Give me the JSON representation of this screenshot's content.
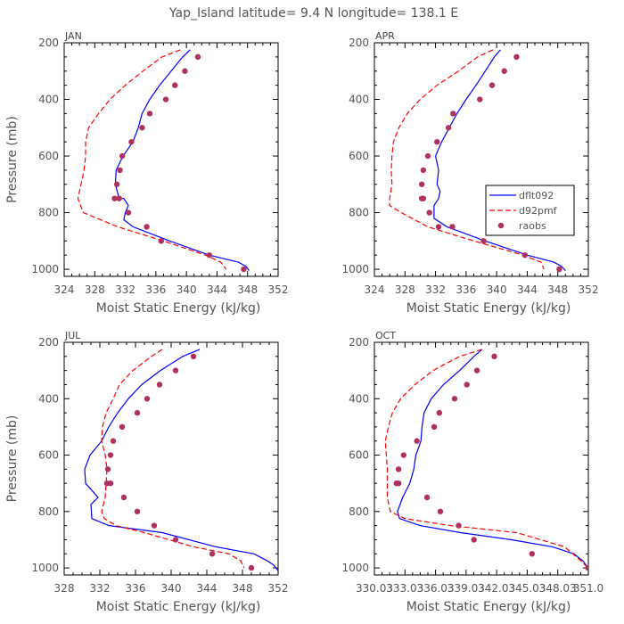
{
  "figure_title": "Yap_Island  latitude= 9.4 N longitude= 138.1 E",
  "chart_data": [
    {
      "type": "line",
      "title": "JAN",
      "xlabel": "Moist Static Energy (kJ/kg)",
      "ylabel": "Pressure (mb)",
      "xlim": [
        324,
        352
      ],
      "ylim": [
        1025,
        200
      ],
      "xticks": [
        324,
        328,
        332,
        336,
        340,
        344,
        348,
        352
      ],
      "xtick_labels": [
        "324",
        "328",
        "332",
        "336",
        "340",
        "344",
        "348",
        "352"
      ],
      "yticks": [
        200,
        400,
        600,
        800,
        1000
      ],
      "ytick_labels": [
        "200",
        "400",
        "600",
        "800",
        "1000"
      ],
      "series": [
        {
          "name": "dflt092",
          "color": "#0000ff",
          "style": "solid",
          "x": [
            340.5,
            339.5,
            338,
            336.5,
            335.2,
            334.2,
            333.7,
            333,
            331.7,
            330.8,
            330.7,
            331.2,
            331.8,
            332.4,
            332,
            331.8,
            333,
            337.8,
            343,
            346.8,
            347.8,
            348.2
          ],
          "y": [
            225,
            250,
            300,
            350,
            400,
            450,
            500,
            550,
            600,
            650,
            700,
            750,
            750,
            775,
            800,
            825,
            850,
            900,
            950,
            975,
            990,
            1005
          ]
        },
        {
          "name": "d92pmf",
          "color": "#ff0000",
          "style": "dashed",
          "x": [
            339.2,
            336.8,
            334.3,
            332,
            330,
            328.5,
            327.2,
            326.8,
            326.8,
            326.6,
            326.2,
            325.8,
            326.5,
            331,
            337,
            342.5,
            344.5,
            345.2
          ],
          "y": [
            225,
            250,
            300,
            350,
            400,
            450,
            500,
            550,
            600,
            650,
            700,
            750,
            800,
            850,
            900,
            950,
            975,
            1000
          ]
        },
        {
          "name": "raobs",
          "color": "#b03060",
          "style": "dots",
          "x": [
            341.5,
            339.8,
            338.5,
            337.3,
            335.2,
            334.2,
            332.8,
            331.6,
            331.3,
            330.9,
            330.6,
            331.2,
            332.4,
            334.8,
            336.7,
            343,
            347.5
          ],
          "y": [
            250,
            300,
            350,
            400,
            450,
            500,
            550,
            600,
            650,
            700,
            750,
            750,
            800,
            850,
            900,
            950,
            1000
          ]
        }
      ]
    },
    {
      "type": "line",
      "title": "APR",
      "xlabel": "Moist Static Energy (kJ/kg)",
      "ylabel": "",
      "xlim": [
        324,
        352
      ],
      "ylim": [
        1025,
        200
      ],
      "xticks": [
        324,
        328,
        332,
        336,
        340,
        344,
        348,
        352
      ],
      "xtick_labels": [
        "324",
        "328",
        "332",
        "336",
        "340",
        "344",
        "348",
        "352"
      ],
      "yticks": [
        200,
        400,
        600,
        800,
        1000
      ],
      "ytick_labels": [
        "200",
        "400",
        "600",
        "800",
        "1000"
      ],
      "legend": {
        "position": "center-right",
        "entries": [
          "dflt092",
          "d92pmf",
          "raobs"
        ]
      },
      "series": [
        {
          "name": "dflt092",
          "color": "#0000ff",
          "style": "solid",
          "x": [
            340.5,
            339.7,
            338.5,
            337.3,
            336,
            334.8,
            333.8,
            332.8,
            332,
            332.4,
            332.2,
            332.6,
            332.4,
            331.8,
            331.8,
            333.5,
            338.5,
            344,
            347.5,
            348.5,
            349
          ],
          "y": [
            225,
            250,
            300,
            350,
            400,
            450,
            500,
            550,
            600,
            650,
            700,
            725,
            750,
            775,
            820,
            850,
            900,
            950,
            975,
            990,
            1005
          ]
        },
        {
          "name": "d92pmf",
          "color": "#ff0000",
          "style": "dashed",
          "x": [
            339.5,
            337.5,
            335,
            332.2,
            330,
            328.3,
            327.2,
            326.5,
            326.3,
            326.2,
            326.3,
            326,
            326,
            327.5,
            331,
            337,
            343.5,
            345.8,
            346.2
          ],
          "y": [
            225,
            250,
            300,
            350,
            400,
            450,
            500,
            550,
            600,
            650,
            700,
            750,
            775,
            800,
            850,
            900,
            950,
            975,
            1000
          ]
        },
        {
          "name": "raobs",
          "color": "#b03060",
          "style": "dots",
          "x": [
            342.6,
            341,
            339.4,
            337.8,
            334.3,
            333.7,
            332.2,
            331,
            330.4,
            330.2,
            330.4,
            330.2,
            331.2,
            332.4,
            334.2,
            338.3,
            343.7,
            348.2
          ],
          "y": [
            250,
            300,
            350,
            400,
            450,
            500,
            550,
            600,
            650,
            700,
            750,
            750,
            800,
            850,
            850,
            900,
            950,
            1000
          ]
        }
      ]
    },
    {
      "type": "line",
      "title": "JUL",
      "xlabel": "Moist Static Energy (kJ/kg)",
      "ylabel": "Pressure (mb)",
      "xlim": [
        328,
        352
      ],
      "ylim": [
        1025,
        200
      ],
      "xticks": [
        328,
        332,
        336,
        340,
        344,
        348,
        352
      ],
      "xtick_labels": [
        "328",
        "332",
        "336",
        "340",
        "344",
        "348",
        "352"
      ],
      "yticks": [
        200,
        400,
        600,
        800,
        1000
      ],
      "ytick_labels": [
        "200",
        "400",
        "600",
        "800",
        "1000"
      ],
      "series": [
        {
          "name": "dflt092",
          "color": "#0000ff",
          "style": "solid",
          "x": [
            343.2,
            341.3,
            338.8,
            336.7,
            335.2,
            334,
            333,
            332.2,
            330.9,
            330.3,
            330.4,
            331.8,
            331,
            331.1,
            333,
            339,
            345,
            349.3,
            350.8,
            351.5,
            352
          ],
          "y": [
            225,
            250,
            300,
            350,
            400,
            450,
            500,
            550,
            600,
            650,
            700,
            750,
            775,
            825,
            850,
            875,
            925,
            950,
            975,
            990,
            1010
          ]
        },
        {
          "name": "d92pmf",
          "color": "#ff0000",
          "style": "dashed",
          "x": [
            339,
            337.8,
            335.7,
            334.2,
            333.5,
            332.7,
            332.3,
            332.2,
            332.6,
            332.8,
            332.7,
            332.6,
            332.2,
            332.5,
            333.8,
            337,
            342.5,
            346.5,
            347.8,
            348.2
          ],
          "y": [
            225,
            250,
            300,
            350,
            400,
            450,
            500,
            550,
            600,
            650,
            700,
            750,
            800,
            825,
            850,
            875,
            925,
            950,
            975,
            1000
          ]
        },
        {
          "name": "raobs",
          "color": "#b03060",
          "style": "dots",
          "x": [
            342.5,
            340.5,
            338.7,
            337.3,
            336.2,
            334.5,
            333.5,
            333.2,
            332.9,
            332.8,
            333.2,
            334.7,
            336.2,
            338.1,
            340.5,
            344.6,
            349
          ],
          "y": [
            250,
            300,
            350,
            400,
            450,
            500,
            550,
            600,
            650,
            700,
            700,
            750,
            800,
            850,
            900,
            950,
            1000
          ]
        }
      ]
    },
    {
      "type": "line",
      "title": "OCT",
      "xlabel": "Moist Static Energy (kJ/kg)",
      "ylabel": "",
      "xlim": [
        330.03,
        351.03
      ],
      "ylim": [
        1025,
        200
      ],
      "xticks": [
        330.03,
        333.03,
        336.03,
        339.03,
        342.03,
        345.03,
        348.03,
        351.03
      ],
      "xtick_labels": [
        "330.03",
        "333.03",
        "336.03",
        "339.03",
        "342.03",
        "345.03",
        "348.03",
        "351.0"
      ],
      "yticks": [
        200,
        400,
        600,
        800,
        1000
      ],
      "ytick_labels": [
        "200",
        "400",
        "600",
        "800",
        "1000"
      ],
      "series": [
        {
          "name": "dflt092",
          "color": "#0000ff",
          "style": "solid",
          "x": [
            340.6,
            339.8,
            338.4,
            336.8,
            335.6,
            334.9,
            334.7,
            334.6,
            334.1,
            333.9,
            333.5,
            332.8,
            332.3,
            332.5,
            334.5,
            338.5,
            343.5,
            347.5,
            349.6,
            350.5,
            351
          ],
          "y": [
            225,
            250,
            300,
            350,
            400,
            450,
            500,
            550,
            600,
            650,
            700,
            750,
            800,
            825,
            850,
            875,
            900,
            925,
            950,
            975,
            1000
          ]
        },
        {
          "name": "d92pmf",
          "color": "#ff0000",
          "style": "dashed",
          "x": [
            340.6,
            338.4,
            335.8,
            334,
            332.6,
            331.8,
            331.4,
            331.1,
            331.2,
            331.3,
            331.3,
            331.3,
            331.6,
            333,
            337.5,
            344,
            348.7,
            350.3,
            351
          ],
          "y": [
            225,
            250,
            300,
            350,
            400,
            450,
            500,
            550,
            600,
            650,
            700,
            750,
            800,
            825,
            850,
            875,
            925,
            975,
            1000
          ]
        },
        {
          "name": "raobs",
          "color": "#b03060",
          "style": "dots",
          "x": [
            341.8,
            340.1,
            339.1,
            337.9,
            336.4,
            335.9,
            334.2,
            332.9,
            332.4,
            332.2,
            332.4,
            335.2,
            336.5,
            338.3,
            339.8,
            345.5,
            351
          ],
          "y": [
            250,
            300,
            350,
            400,
            450,
            500,
            550,
            600,
            650,
            700,
            700,
            750,
            800,
            850,
            900,
            950,
            1000
          ]
        }
      ]
    }
  ]
}
